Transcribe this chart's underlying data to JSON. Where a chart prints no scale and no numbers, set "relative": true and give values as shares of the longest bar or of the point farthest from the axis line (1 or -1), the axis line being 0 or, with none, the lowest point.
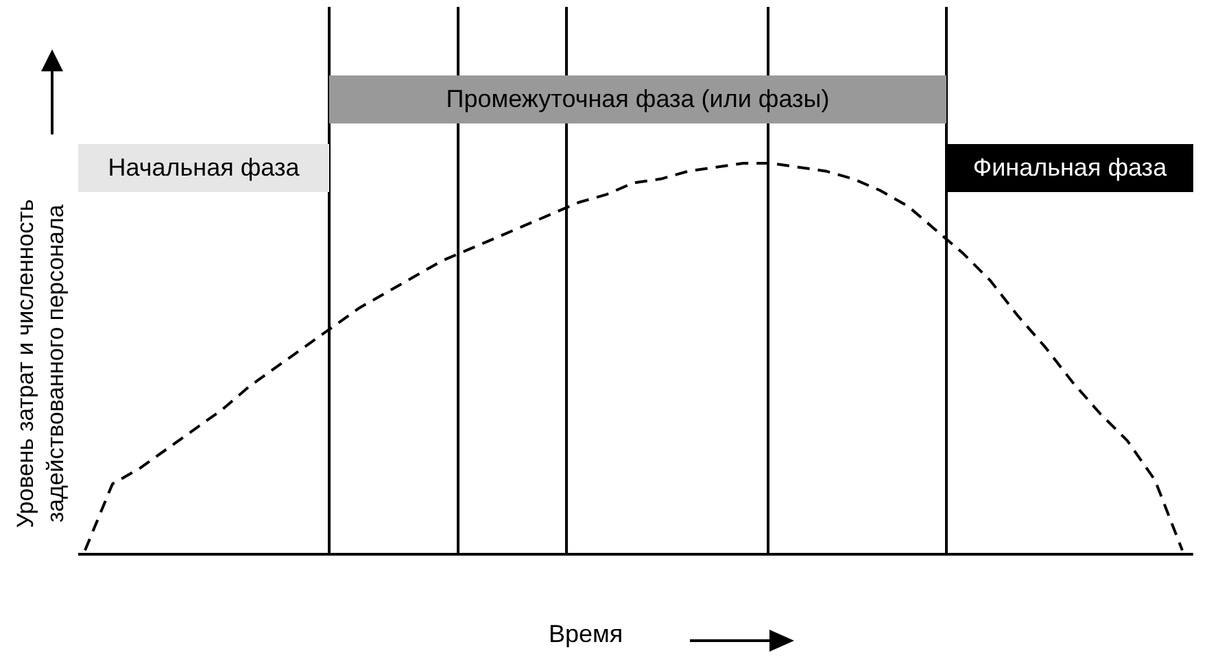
{
  "chart_data": {
    "type": "line",
    "relative": true,
    "xlabel": "Время",
    "ylabel": "Уровень затрат и численность задействованного персонала",
    "categories": [
      null,
      null,
      null,
      null,
      null,
      null,
      null,
      null,
      null,
      null,
      null,
      null,
      null,
      null,
      null,
      null,
      null,
      null,
      null,
      null,
      null,
      null,
      null,
      null,
      null,
      null,
      null,
      null,
      null,
      null,
      null,
      null,
      null,
      null,
      null,
      null,
      null,
      null,
      null,
      null,
      null
    ],
    "line_style": "dashed",
    "marker": "none",
    "grid": false,
    "legend": false,
    "series": [
      {
        "color": "#000000",
        "values": [
          0.01,
          0.18,
          0.22,
          0.27,
          0.32,
          0.37,
          0.43,
          0.48,
          0.53,
          0.58,
          0.63,
          0.67,
          0.71,
          0.75,
          0.78,
          0.81,
          0.84,
          0.87,
          0.9,
          0.92,
          0.95,
          0.96,
          0.98,
          0.99,
          1.0,
          1.0,
          0.99,
          0.98,
          0.96,
          0.93,
          0.89,
          0.83,
          0.77,
          0.7,
          0.61,
          0.53,
          0.44,
          0.36,
          0.29,
          0.19,
          0.01
        ]
      }
    ],
    "annotations": [
      "Начальная фаза",
      "Промежуточная фаза (или фазы)",
      "Финальная фаза"
    ]
  }
}
